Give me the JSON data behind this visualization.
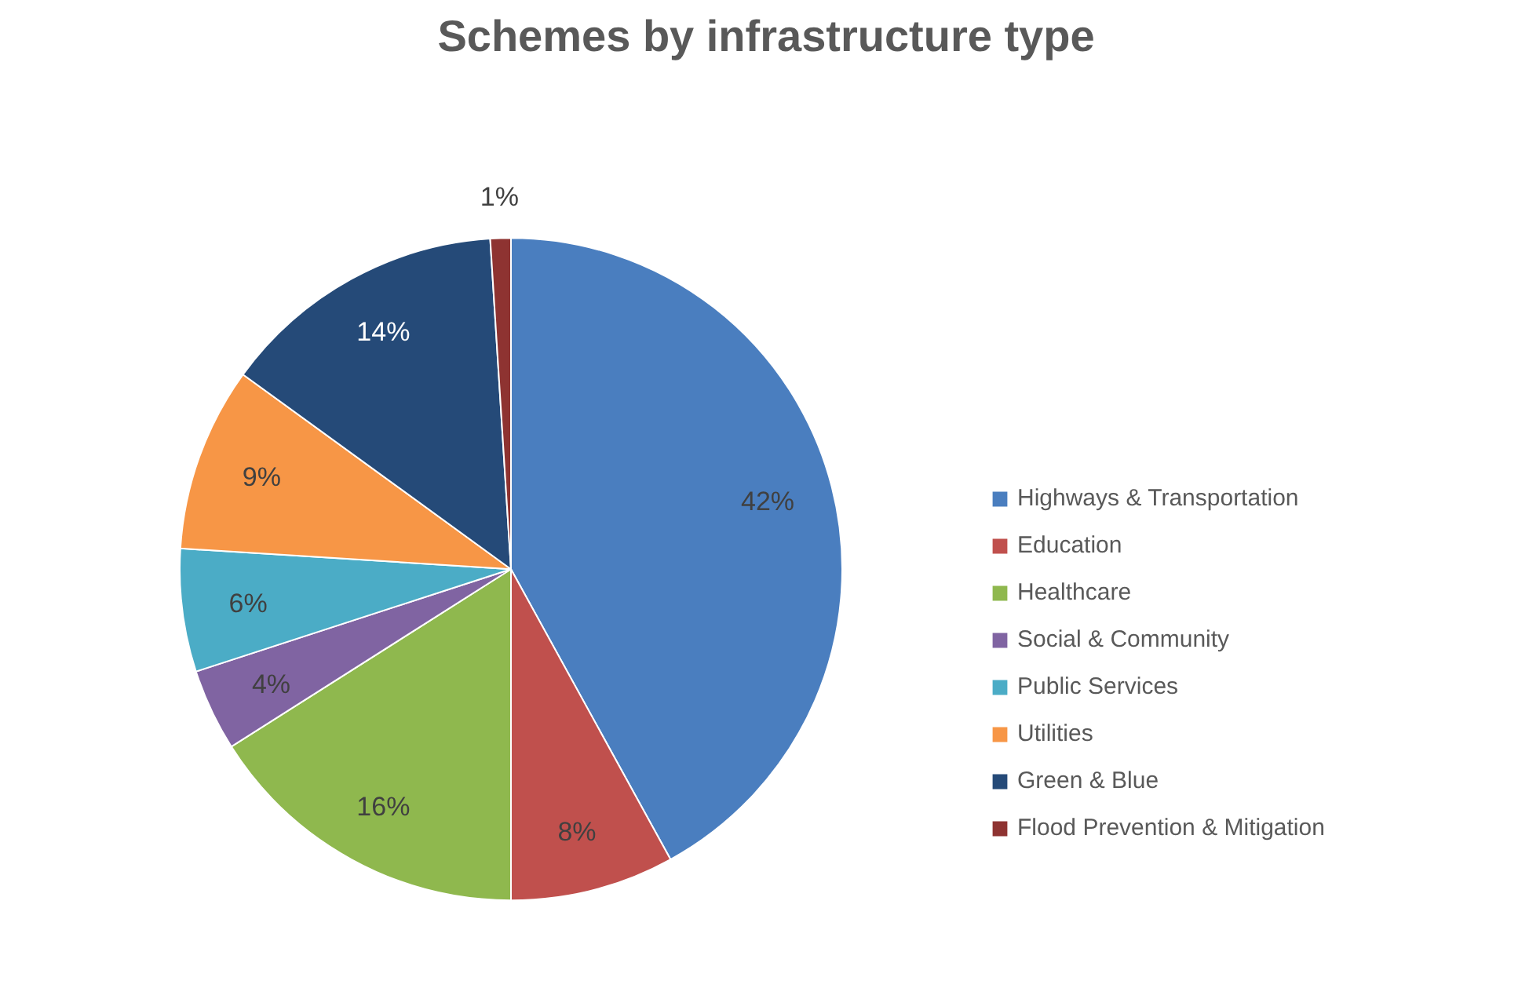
{
  "chart_data": {
    "type": "pie",
    "title": "Schemes by infrastructure type",
    "categories": [
      "Highways & Transportation",
      "Education",
      "Healthcare",
      "Social & Community",
      "Public Services",
      "Utilities",
      "Green & Blue",
      "Flood Prevention & Mitigation"
    ],
    "values": [
      42,
      8,
      16,
      4,
      6,
      9,
      14,
      1
    ],
    "colors": [
      "#4a7ebf",
      "#c0504d",
      "#8fb84e",
      "#8064a2",
      "#4bacc6",
      "#f79646",
      "#254a78",
      "#8e3331"
    ],
    "value_labels": [
      "42%",
      "8%",
      "16%",
      "4%",
      "6%",
      "9%",
      "14%",
      "1%"
    ],
    "legend": "right"
  }
}
